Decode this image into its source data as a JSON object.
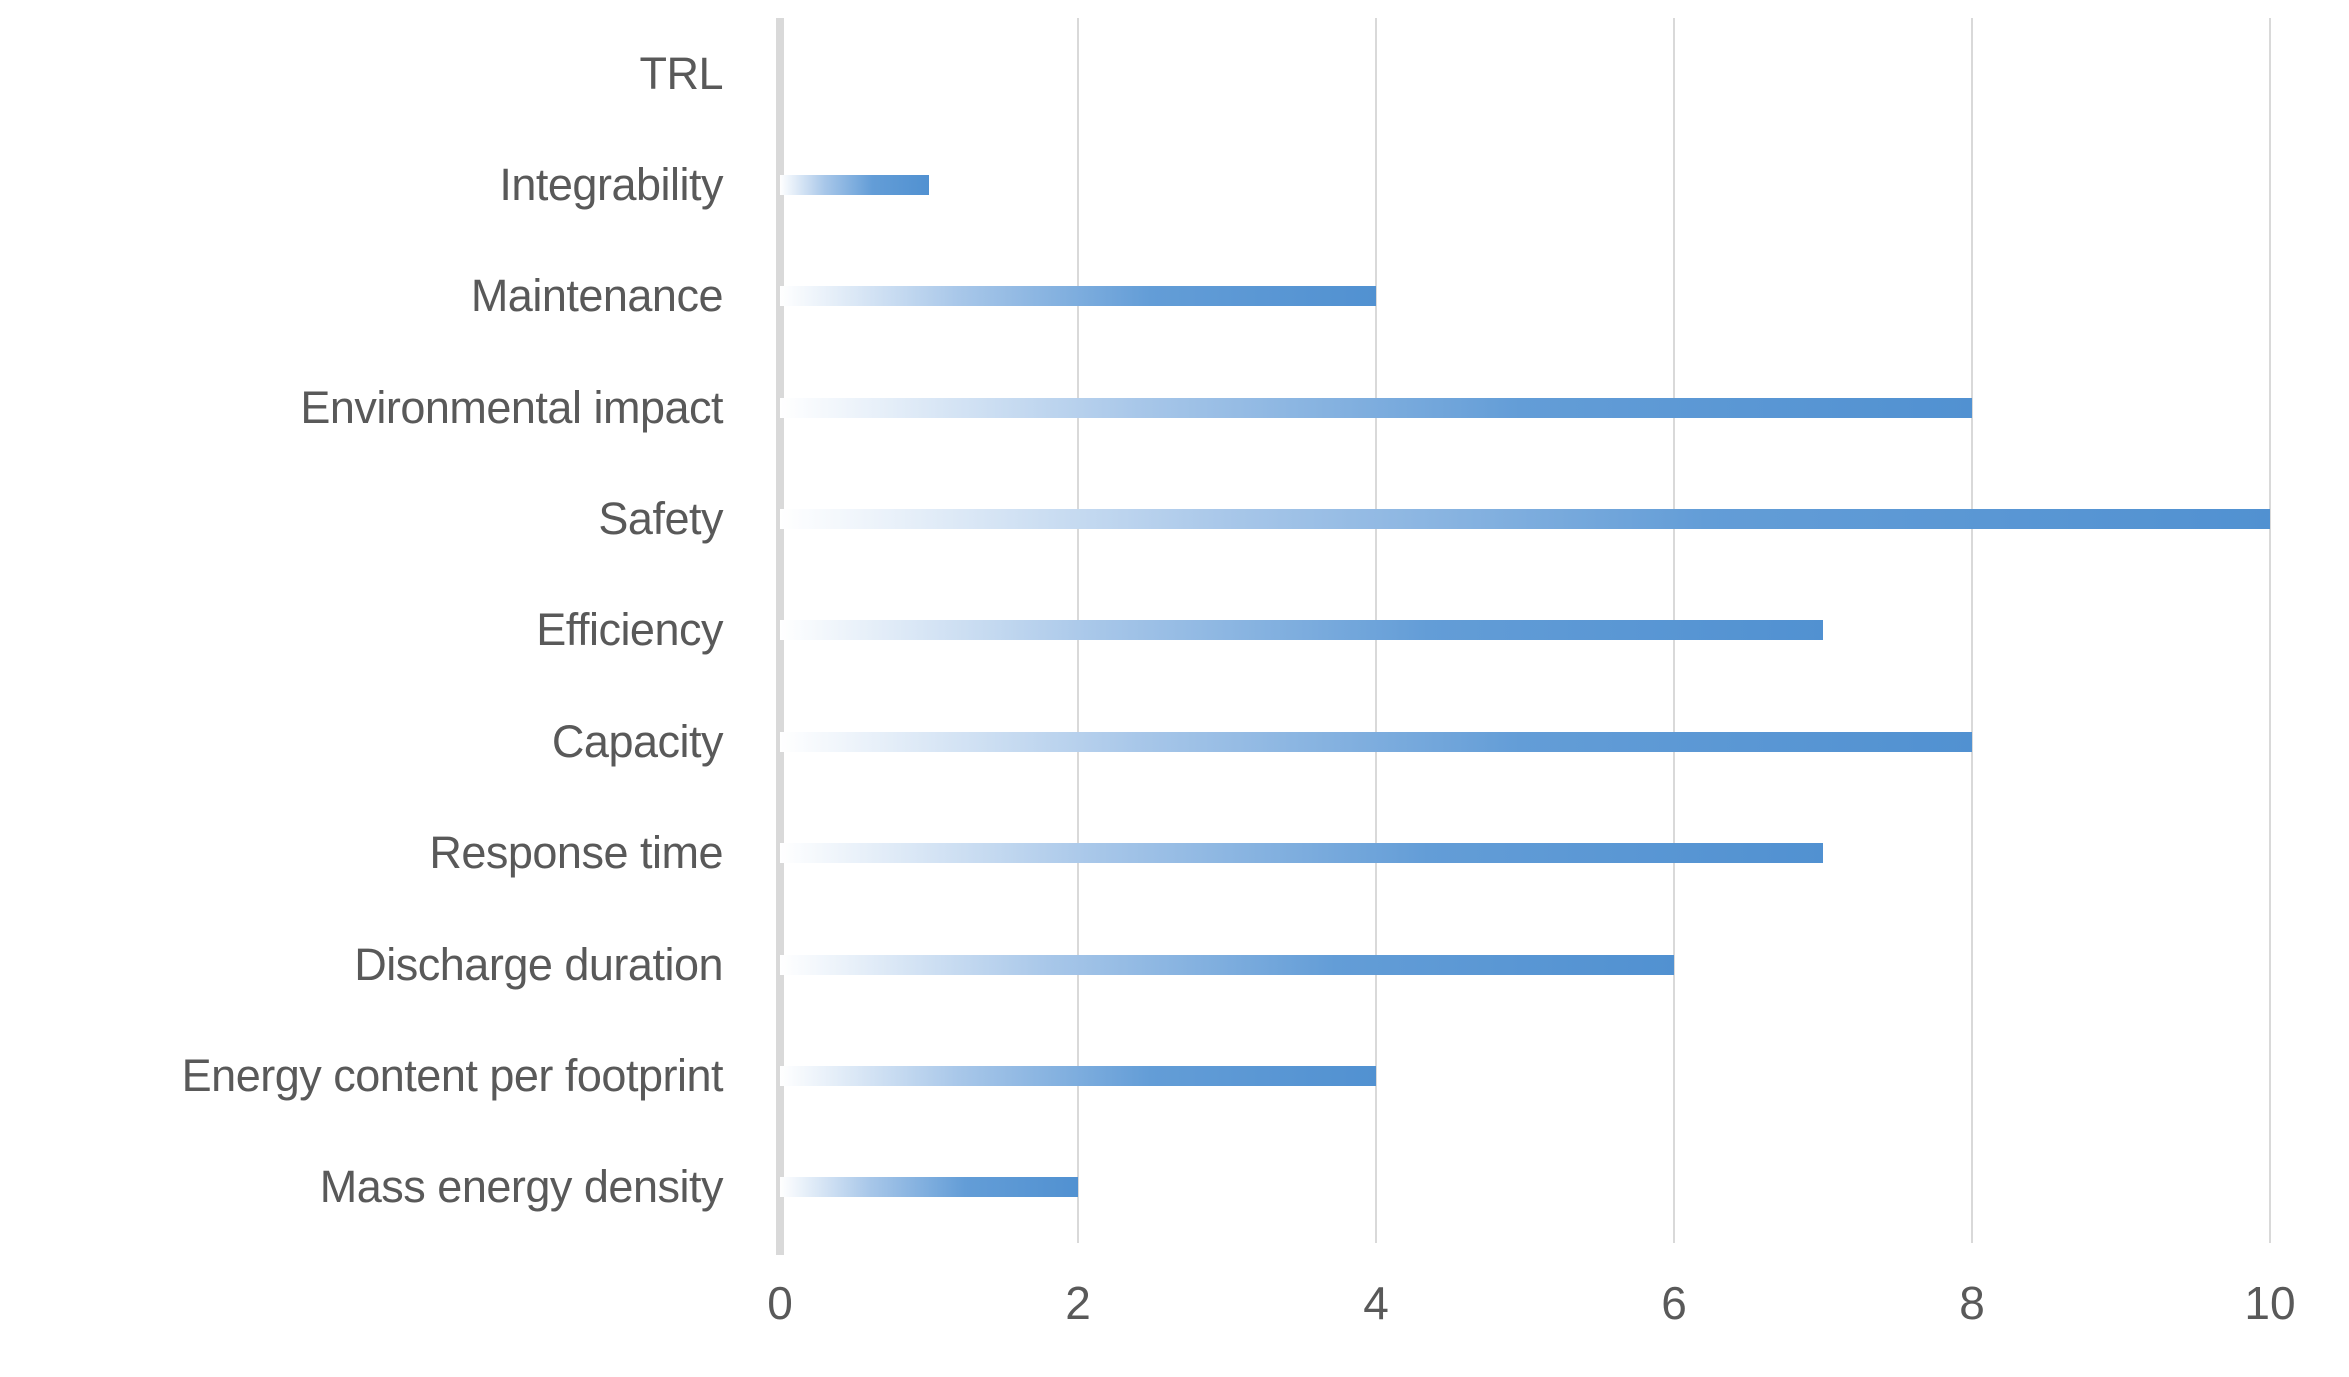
{
  "chart_data": {
    "type": "bar",
    "orientation": "horizontal",
    "title": "",
    "xlabel": "",
    "ylabel": "",
    "categories": [
      "TRL",
      "Integrability",
      "Maintenance",
      "Environmental impact",
      "Safety",
      "Efficiency",
      "Capacity",
      "Response time",
      "Discharge duration",
      "Energy content per footprint",
      "Mass energy density"
    ],
    "values": [
      0,
      1,
      4,
      8,
      10,
      7,
      8,
      7,
      6,
      4,
      2
    ],
    "xlim": [
      0,
      10
    ],
    "x_ticks": [
      0,
      2,
      4,
      6,
      8,
      10
    ],
    "x_tick_labels": [
      "0",
      "2",
      "4",
      "6",
      "8",
      "10"
    ],
    "grid": "vertical-major",
    "legend": "none",
    "bar_style": {
      "fill": "horizontal-gradient",
      "gradient_start": "#ffffff",
      "gradient_light": "#a8c7e9",
      "gradient_mid": "#639dd7",
      "gradient_end": "#5191d1"
    },
    "colors": {
      "gridline": "#d9d9d9",
      "axis_line": "#d9d9d9",
      "label_text": "#595959",
      "background": "#ffffff"
    }
  }
}
